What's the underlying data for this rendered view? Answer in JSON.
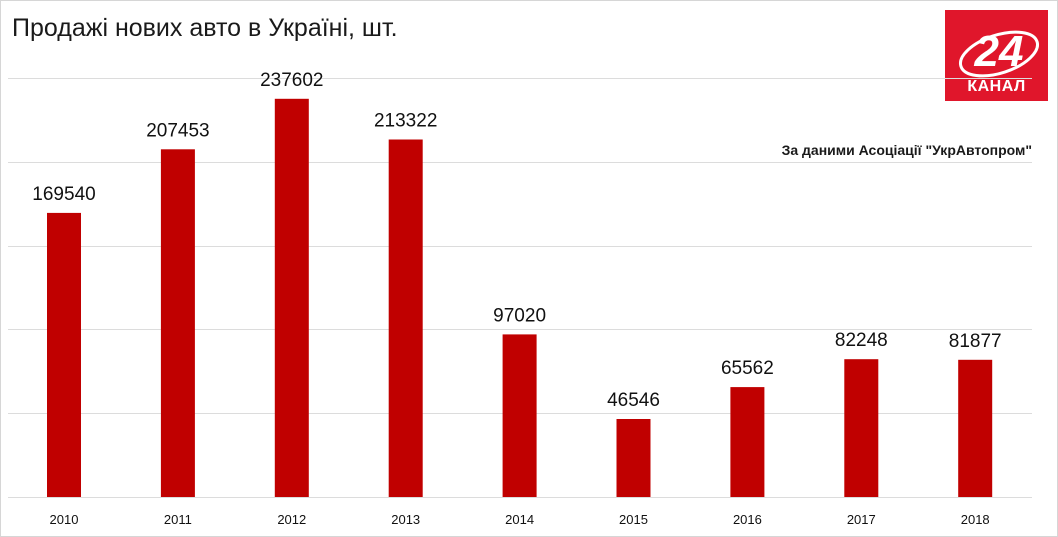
{
  "chart_data": {
    "type": "bar",
    "title": "Продажі нових авто в Україні, шт.",
    "source": "За даними Асоціації \"УкрАвтопром\"",
    "categories": [
      "2010",
      "2011",
      "2012",
      "2013",
      "2014",
      "2015",
      "2016",
      "2017",
      "2018"
    ],
    "values": [
      169540,
      207453,
      237602,
      213322,
      97020,
      46546,
      65562,
      82248,
      81877
    ],
    "ylim": [
      0,
      250000
    ],
    "grid": true,
    "bar_color": "#c00000"
  },
  "logo": {
    "number": "24",
    "caption": "КАНАЛ",
    "color": "#e0162b"
  }
}
